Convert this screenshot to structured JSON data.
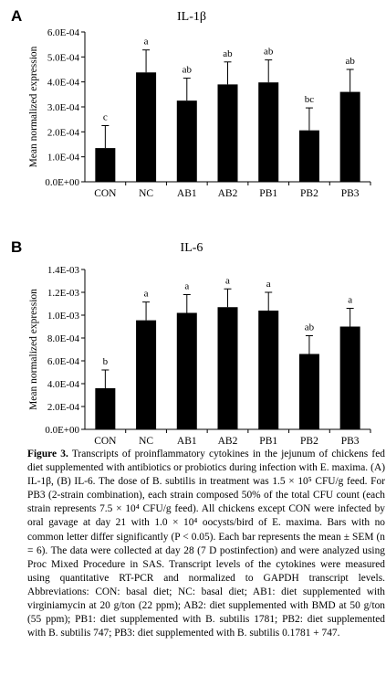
{
  "chart_data": [
    {
      "type": "bar",
      "panel_label": "A",
      "title": "IL-1β",
      "ylabel": "Mean normalized expression",
      "ylim": [
        0,
        0.0006
      ],
      "yticks": [
        "0.0E+00",
        "1.0E-04",
        "2.0E-04",
        "3.0E-04",
        "4.0E-04",
        "5.0E-04",
        "6.0E-04"
      ],
      "categories": [
        "CON",
        "NC",
        "AB1",
        "AB2",
        "PB1",
        "PB2",
        "PB3"
      ],
      "values": [
        0.000135,
        0.000438,
        0.000325,
        0.00039,
        0.000398,
        0.000206,
        0.00036
      ],
      "errors": [
        9e-05,
        9e-05,
        9e-05,
        9e-05,
        9e-05,
        9e-05,
        9e-05
      ],
      "letters": [
        "c",
        "a",
        "ab",
        "ab",
        "ab",
        "bc",
        "ab"
      ]
    },
    {
      "type": "bar",
      "panel_label": "B",
      "title": "IL-6",
      "ylabel": "Mean normalized expression",
      "ylim": [
        0,
        0.0014
      ],
      "yticks": [
        "0.0E+00",
        "2.0E-04",
        "4.0E-04",
        "6.0E-04",
        "8.0E-04",
        "1.0E-03",
        "1.2E-03",
        "1.4E-03"
      ],
      "categories": [
        "CON",
        "NC",
        "AB1",
        "AB2",
        "PB1",
        "PB2",
        "PB3"
      ],
      "values": [
        0.00036,
        0.000955,
        0.00102,
        0.00107,
        0.00104,
        0.00066,
        0.0009
      ],
      "errors": [
        0.00016,
        0.00016,
        0.00016,
        0.00016,
        0.00016,
        0.00016,
        0.00016
      ],
      "letters": [
        "b",
        "a",
        "a",
        "a",
        "a",
        "ab",
        "a"
      ]
    }
  ],
  "caption": {
    "label": "Figure 3.",
    "text": "Transcripts of proinflammatory cytokines in the jejunum of chickens fed diet supplemented with antibiotics or probiotics during infection with E. maxima. (A) IL-1β, (B) IL-6. The dose of B. subtilis in treatment was 1.5 × 10⁵ CFU/g feed. For PB3 (2-strain combination), each strain composed 50% of the total CFU count (each strain represents 7.5 × 10⁴ CFU/g feed). All chickens except CON were infected by oral gavage at day 21 with 1.0 × 10⁴ oocysts/bird of E. maxima. Bars with no common letter differ significantly (P < 0.05). Each bar represents the mean ± SEM (n = 6). The data were collected at day 28 (7 D postinfection) and were analyzed using Proc Mixed Procedure in SAS. Transcript levels of the cytokines were measured using quantitative RT-PCR and normalized to GAPDH transcript levels. Abbreviations: CON: basal diet; NC: basal diet; AB1: diet supplemented with virginiamycin at 20 g/ton (22 ppm); AB2: diet supplemented with BMD at 50 g/ton (55 ppm); PB1: diet supplemented with B. subtilis 1781; PB2: diet supplemented with B. subtilis 747; PB3: diet supplemented with B. subtilis 0.1781 + 747."
  }
}
